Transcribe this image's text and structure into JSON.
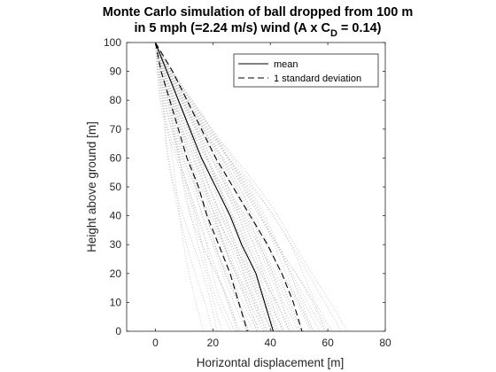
{
  "chart_data": {
    "type": "line",
    "title": [
      "Monte Carlo simulation of ball dropped from 100 m",
      "in 5 mph (=2.24 m/s) wind (A x C",
      "D",
      " = 0.14)"
    ],
    "xlabel": "Horizontal displacement [m]",
    "ylabel": "Height above ground [m]",
    "xlim": [
      -10,
      80
    ],
    "ylim": [
      0,
      100
    ],
    "xticks": [
      0,
      20,
      40,
      60,
      80
    ],
    "yticks": [
      0,
      10,
      20,
      30,
      40,
      50,
      60,
      70,
      80,
      90,
      100
    ],
    "grid": false,
    "legend_location": "top-right",
    "series": [
      {
        "name": "mean",
        "style": "solid",
        "color": "#000000",
        "points": [
          [
            0,
            100
          ],
          [
            4,
            90
          ],
          [
            8,
            80
          ],
          [
            12,
            70
          ],
          [
            16,
            60
          ],
          [
            21,
            50
          ],
          [
            26,
            40
          ],
          [
            30,
            30
          ],
          [
            35,
            20
          ],
          [
            38,
            10
          ],
          [
            41,
            0
          ]
        ]
      },
      {
        "name": "1 standard deviation",
        "style": "dashed",
        "color": "#000000",
        "points": [
          [
            0,
            100
          ],
          [
            6,
            90
          ],
          [
            11,
            80
          ],
          [
            16,
            70
          ],
          [
            21,
            60
          ],
          [
            27,
            50
          ],
          [
            33,
            40
          ],
          [
            39,
            30
          ],
          [
            44,
            20
          ],
          [
            48,
            10
          ],
          [
            51,
            0
          ]
        ]
      },
      {
        "name": "",
        "style": "dashed",
        "color": "#000000",
        "points": [
          [
            0,
            100
          ],
          [
            2,
            90
          ],
          [
            5,
            80
          ],
          [
            8,
            70
          ],
          [
            11,
            60
          ],
          [
            15,
            50
          ],
          [
            18,
            40
          ],
          [
            22,
            30
          ],
          [
            26,
            20
          ],
          [
            29,
            10
          ],
          [
            32,
            0
          ]
        ]
      }
    ],
    "simulation_traces": {
      "color": "#bdbdbd",
      "style": "dotted",
      "final_displacements": [
        16,
        19,
        22,
        24,
        26,
        27,
        28,
        29,
        30,
        31,
        32,
        33,
        33,
        34,
        35,
        35,
        36,
        37,
        37,
        38,
        38,
        39,
        39,
        40,
        40,
        41,
        41,
        41,
        42,
        42,
        43,
        43,
        44,
        44,
        45,
        45,
        46,
        46,
        47,
        48,
        48,
        49,
        50,
        51,
        52,
        53,
        54,
        55,
        56,
        57,
        58,
        59,
        60,
        62,
        64,
        66
      ],
      "x_at_60m_range": [
        4,
        34
      ]
    }
  }
}
